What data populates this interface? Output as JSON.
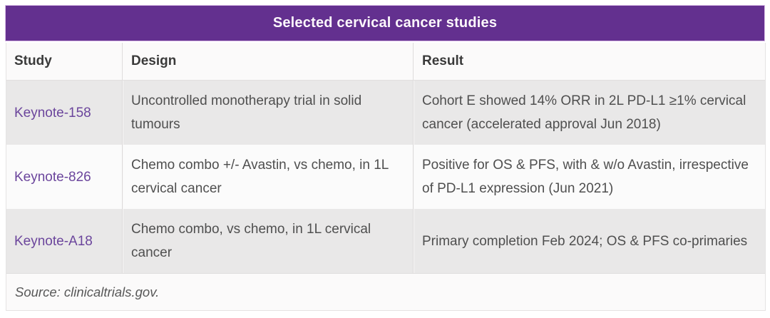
{
  "title": "Selected cervical cancer studies",
  "columns": {
    "study": "Study",
    "design": "Design",
    "result": "Result"
  },
  "rows": [
    {
      "study": "Keynote-158",
      "design": "Uncontrolled monotherapy trial in solid tumours",
      "result": "Cohort E showed 14% ORR in 2L PD-L1 ≥1% cervical cancer (accelerated approval Jun 2018)"
    },
    {
      "study": "Keynote-826",
      "design": "Chemo combo +/- Avastin, vs chemo, in 1L cervical cancer",
      "result": "Positive for OS & PFS, with & w/o Avastin, irrespective of PD-L1 expression (Jun 2021)"
    },
    {
      "study": "Keynote-A18",
      "design": "Chemo combo, vs chemo, in 1L cervical cancer",
      "result": "Primary completion Feb 2024; OS & PFS co-primaries"
    }
  ],
  "source_note": "Source: clinicaltrials.gov.",
  "colors": {
    "title_bg": "#63308f",
    "title_text": "#ffffff",
    "link_purple": "#6b459c",
    "row_gray": "#e9e8e8",
    "row_white": "#fbfbfb"
  }
}
